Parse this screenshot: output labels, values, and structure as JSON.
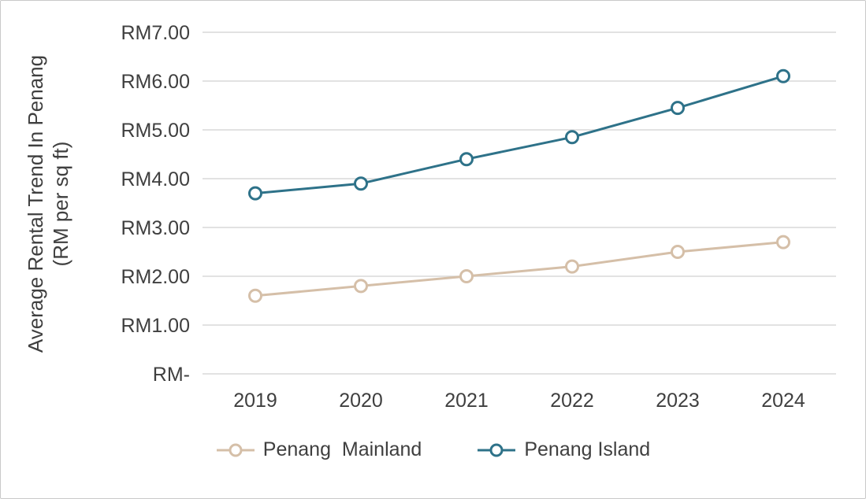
{
  "frame": {
    "background": "#ffffff",
    "border_color": "#c9c9c9"
  },
  "chart_data": {
    "type": "line",
    "title": "",
    "ylabel_line1": "Average Rental Trend In Penang",
    "ylabel_line2": "(RM per sq ft)",
    "xlabel": "",
    "categories": [
      "2019",
      "2020",
      "2021",
      "2022",
      "2023",
      "2024"
    ],
    "series": [
      {
        "name": "Penang  Mainland",
        "color": "#d5bfa8",
        "values": [
          1.6,
          1.8,
          2.0,
          2.2,
          2.5,
          2.7
        ]
      },
      {
        "name": "Penang Island",
        "color": "#2e7289",
        "values": [
          3.7,
          3.9,
          4.4,
          4.85,
          5.45,
          6.1
        ]
      }
    ],
    "y_ticks": [
      {
        "value": 0,
        "label": "RM-"
      },
      {
        "value": 1,
        "label": "RM1.00"
      },
      {
        "value": 2,
        "label": "RM2.00"
      },
      {
        "value": 3,
        "label": "RM3.00"
      },
      {
        "value": 4,
        "label": "RM4.00"
      },
      {
        "value": 5,
        "label": "RM5.00"
      },
      {
        "value": 6,
        "label": "RM6.00"
      },
      {
        "value": 7,
        "label": "RM7.00"
      }
    ],
    "ylim": [
      0,
      7
    ],
    "grid": true,
    "gridline_color": "#d9d9d9",
    "text_color": "#3f3f3f",
    "legend_position": "bottom",
    "marker": "open-circle"
  }
}
